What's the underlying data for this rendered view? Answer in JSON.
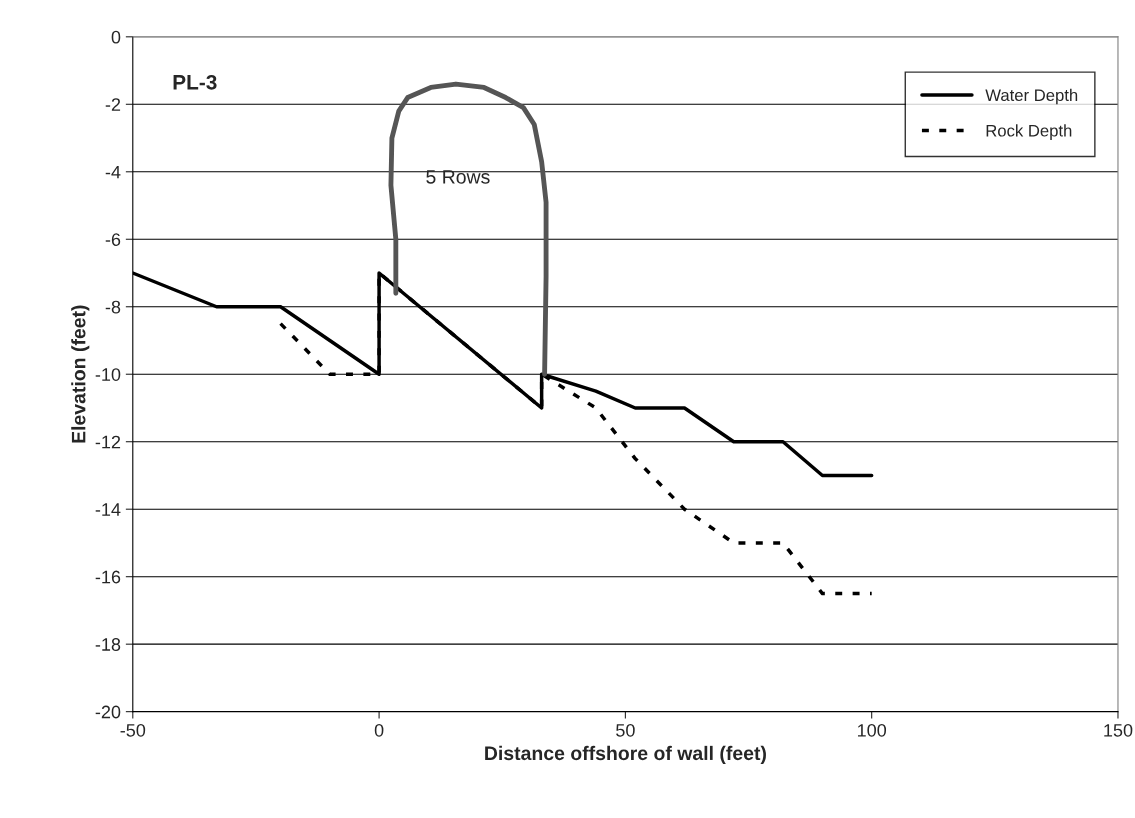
{
  "chart_data": {
    "type": "line",
    "xlabel": "Distance offshore of wall (feet)",
    "ylabel": "Elevation (feet)",
    "annotations": [
      "PL-3",
      "5 Rows"
    ],
    "xlim": [
      -50,
      150
    ],
    "xticks": [
      -50,
      0,
      50,
      100,
      150
    ],
    "ylim": [
      -20,
      0
    ],
    "yticks": [
      -20,
      -18,
      -16,
      -14,
      -12,
      -10,
      -8,
      -6,
      -4,
      -2,
      0
    ],
    "grid": "y",
    "legend": "top right",
    "series": [
      {
        "name": "Water Depth",
        "color": "#000000",
        "line_style": "solid",
        "x": [
          -50,
          -33,
          -20,
          -10,
          0,
          0,
          33,
          33,
          44,
          52,
          62,
          72,
          82,
          90,
          100
        ],
        "values": [
          -7,
          -8,
          -8,
          -9,
          -10,
          -7,
          -11,
          -10,
          -10.5,
          -11,
          -11,
          -12,
          -12,
          -13,
          -13
        ]
      },
      {
        "name": "Rock Depth",
        "color": "#000000",
        "line_style": "dotted",
        "x": [
          -20,
          -10,
          0,
          0,
          33,
          33,
          44,
          52,
          62,
          72,
          82,
          90,
          100
        ],
        "values": [
          -8.5,
          -10,
          -10,
          -7,
          -11,
          -10,
          -11,
          -12.5,
          -14,
          -15,
          -15,
          -16.5,
          -16.5
        ]
      },
      {
        "color": "#555555",
        "line_style": "solid",
        "x": [
          3.4,
          3.4,
          2.4,
          2.6,
          4,
          5.8,
          10.5,
          15.6,
          21.3,
          25.7,
          29.3,
          31.5,
          33,
          33.9,
          33.9,
          33.6
        ],
        "values": [
          -7.6,
          -6,
          -4.4,
          -3,
          -2.2,
          -1.8,
          -1.5,
          -1.4,
          -1.5,
          -1.8,
          -2.1,
          -2.6,
          -3.7,
          -4.9,
          -7.1,
          -10
        ]
      }
    ]
  }
}
